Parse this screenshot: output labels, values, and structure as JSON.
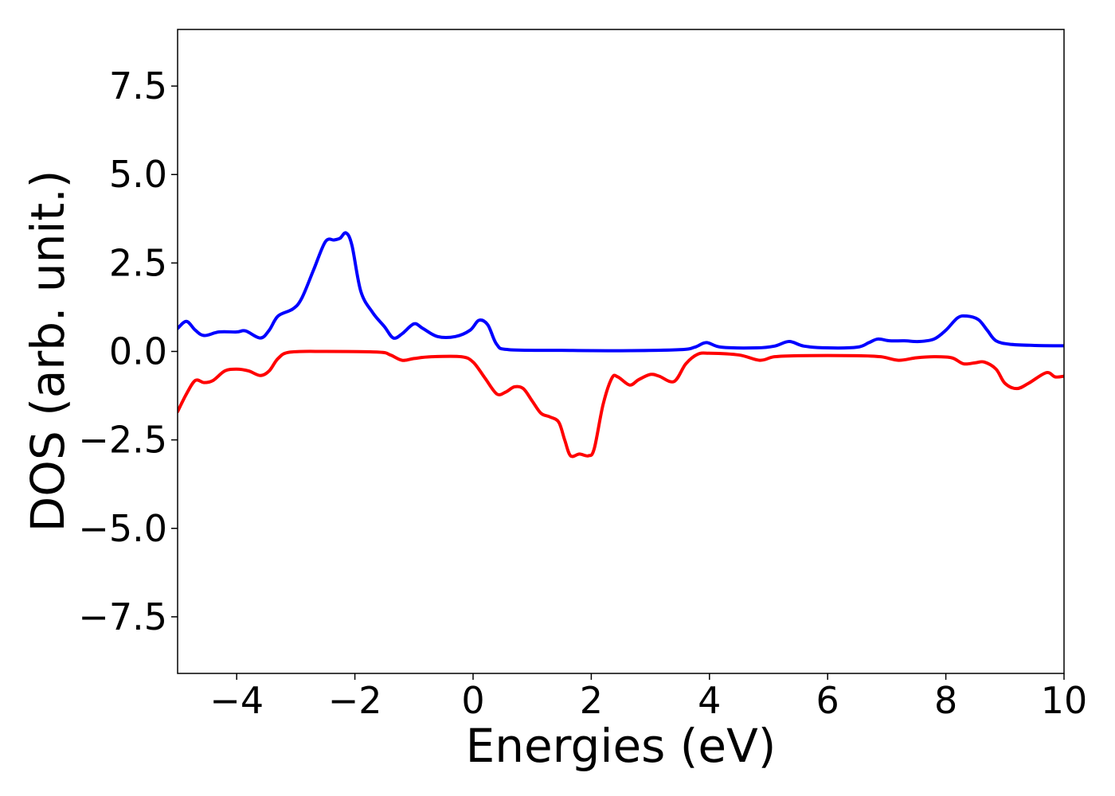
{
  "chart_data": {
    "type": "line",
    "title": "",
    "xlabel": "Energies (eV)",
    "ylabel": "DOS (arb. unit.)",
    "xlim": [
      -5,
      10
    ],
    "ylim": [
      -9.1,
      9.1
    ],
    "x_ticks": [
      -4,
      -2,
      0,
      2,
      4,
      6,
      8,
      10
    ],
    "x_tick_labels": [
      "−4",
      "−2",
      "0",
      "2",
      "4",
      "6",
      "8",
      "10"
    ],
    "y_ticks": [
      7.5,
      5.0,
      2.5,
      0.0,
      -2.5,
      -5.0,
      -7.5
    ],
    "y_tick_labels": [
      "7.5",
      "5.0",
      "2.5",
      "0.0",
      "−2.5",
      "−5.0",
      "−7.5"
    ],
    "grid": false,
    "legend": "none",
    "series": [
      {
        "color": "#0000ff",
        "points": [
          [
            -5.0,
            0.65
          ],
          [
            -4.85,
            0.85
          ],
          [
            -4.7,
            0.6
          ],
          [
            -4.55,
            0.45
          ],
          [
            -4.3,
            0.55
          ],
          [
            -4.0,
            0.55
          ],
          [
            -3.85,
            0.58
          ],
          [
            -3.6,
            0.38
          ],
          [
            -3.45,
            0.6
          ],
          [
            -3.3,
            1.0
          ],
          [
            -3.05,
            1.2
          ],
          [
            -2.9,
            1.5
          ],
          [
            -2.7,
            2.3
          ],
          [
            -2.5,
            3.1
          ],
          [
            -2.35,
            3.15
          ],
          [
            -2.25,
            3.2
          ],
          [
            -2.15,
            3.35
          ],
          [
            -2.05,
            3.0
          ],
          [
            -1.9,
            1.7
          ],
          [
            -1.7,
            1.1
          ],
          [
            -1.5,
            0.7
          ],
          [
            -1.35,
            0.38
          ],
          [
            -1.2,
            0.5
          ],
          [
            -1.0,
            0.78
          ],
          [
            -0.85,
            0.65
          ],
          [
            -0.6,
            0.42
          ],
          [
            -0.3,
            0.42
          ],
          [
            -0.05,
            0.6
          ],
          [
            0.1,
            0.88
          ],
          [
            0.25,
            0.75
          ],
          [
            0.4,
            0.2
          ],
          [
            0.6,
            0.05
          ],
          [
            1.5,
            0.03
          ],
          [
            2.5,
            0.02
          ],
          [
            3.5,
            0.05
          ],
          [
            3.75,
            0.12
          ],
          [
            3.95,
            0.25
          ],
          [
            4.2,
            0.12
          ],
          [
            4.8,
            0.1
          ],
          [
            5.1,
            0.15
          ],
          [
            5.35,
            0.28
          ],
          [
            5.6,
            0.15
          ],
          [
            6.0,
            0.1
          ],
          [
            6.5,
            0.12
          ],
          [
            6.7,
            0.25
          ],
          [
            6.85,
            0.35
          ],
          [
            7.05,
            0.3
          ],
          [
            7.3,
            0.3
          ],
          [
            7.55,
            0.28
          ],
          [
            7.8,
            0.35
          ],
          [
            8.0,
            0.6
          ],
          [
            8.2,
            0.95
          ],
          [
            8.35,
            1.0
          ],
          [
            8.55,
            0.9
          ],
          [
            8.7,
            0.6
          ],
          [
            8.85,
            0.3
          ],
          [
            9.1,
            0.2
          ],
          [
            9.5,
            0.17
          ],
          [
            10.0,
            0.16
          ]
        ]
      },
      {
        "color": "#ff0000",
        "points": [
          [
            -5.0,
            -1.7
          ],
          [
            -4.85,
            -1.2
          ],
          [
            -4.7,
            -0.82
          ],
          [
            -4.55,
            -0.88
          ],
          [
            -4.4,
            -0.82
          ],
          [
            -4.2,
            -0.55
          ],
          [
            -4.0,
            -0.5
          ],
          [
            -3.8,
            -0.55
          ],
          [
            -3.6,
            -0.68
          ],
          [
            -3.45,
            -0.55
          ],
          [
            -3.3,
            -0.2
          ],
          [
            -3.1,
            -0.02
          ],
          [
            -2.5,
            0.0
          ],
          [
            -1.6,
            -0.02
          ],
          [
            -1.4,
            -0.1
          ],
          [
            -1.2,
            -0.25
          ],
          [
            -1.0,
            -0.2
          ],
          [
            -0.7,
            -0.15
          ],
          [
            -0.2,
            -0.15
          ],
          [
            0.0,
            -0.3
          ],
          [
            0.2,
            -0.75
          ],
          [
            0.4,
            -1.2
          ],
          [
            0.55,
            -1.15
          ],
          [
            0.7,
            -1.0
          ],
          [
            0.85,
            -1.05
          ],
          [
            1.0,
            -1.4
          ],
          [
            1.15,
            -1.75
          ],
          [
            1.3,
            -1.85
          ],
          [
            1.45,
            -2.0
          ],
          [
            1.55,
            -2.5
          ],
          [
            1.65,
            -2.95
          ],
          [
            1.8,
            -2.9
          ],
          [
            1.95,
            -2.95
          ],
          [
            2.05,
            -2.75
          ],
          [
            2.2,
            -1.5
          ],
          [
            2.35,
            -0.75
          ],
          [
            2.45,
            -0.72
          ],
          [
            2.65,
            -0.95
          ],
          [
            2.8,
            -0.8
          ],
          [
            3.0,
            -0.65
          ],
          [
            3.15,
            -0.7
          ],
          [
            3.4,
            -0.85
          ],
          [
            3.6,
            -0.35
          ],
          [
            3.8,
            -0.08
          ],
          [
            4.0,
            -0.05
          ],
          [
            4.5,
            -0.1
          ],
          [
            4.85,
            -0.25
          ],
          [
            5.1,
            -0.15
          ],
          [
            5.5,
            -0.12
          ],
          [
            6.5,
            -0.12
          ],
          [
            6.9,
            -0.15
          ],
          [
            7.2,
            -0.25
          ],
          [
            7.5,
            -0.18
          ],
          [
            7.8,
            -0.15
          ],
          [
            8.1,
            -0.18
          ],
          [
            8.3,
            -0.35
          ],
          [
            8.5,
            -0.32
          ],
          [
            8.65,
            -0.3
          ],
          [
            8.85,
            -0.5
          ],
          [
            9.0,
            -0.9
          ],
          [
            9.2,
            -1.05
          ],
          [
            9.4,
            -0.9
          ],
          [
            9.7,
            -0.6
          ],
          [
            9.85,
            -0.72
          ],
          [
            10.0,
            -0.7
          ]
        ]
      }
    ]
  }
}
